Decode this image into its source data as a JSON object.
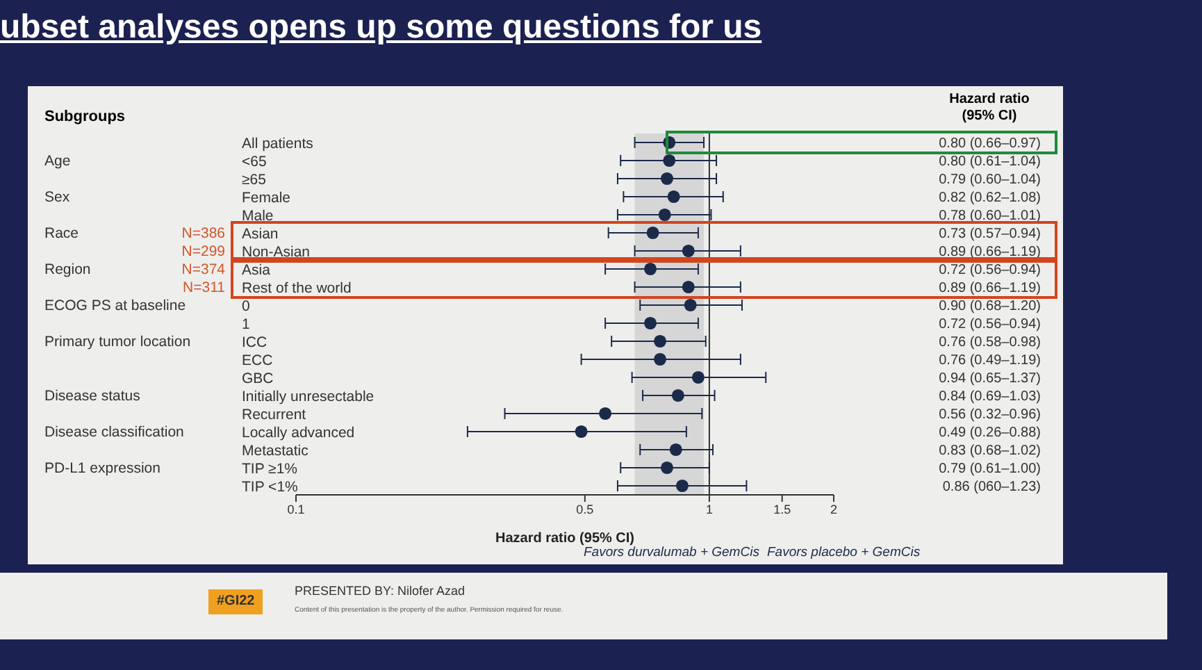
{
  "chart_data": {
    "type": "scatter",
    "title": "ubset analyses opens up some questions for us",
    "xlabel": "Hazard ratio (95% CI)",
    "categories": [
      "All patients",
      "<65",
      "≥65",
      "Female",
      "Male",
      "Asian",
      "Non-Asian",
      "Asia",
      "Rest of the world",
      "0",
      "1",
      "ICC",
      "ECC",
      "GBC",
      "Initially unresectable",
      "Recurrent",
      "Locally advanced",
      "Metastatic",
      "TIP ≥1%",
      "TIP <1%"
    ],
    "series": [
      {
        "color": "#1c2a4a",
        "values": [
          0.8,
          0.8,
          0.79,
          0.82,
          0.78,
          0.73,
          0.89,
          0.72,
          0.89,
          0.9,
          0.72,
          0.76,
          0.76,
          0.94,
          0.84,
          0.56,
          0.49,
          0.83,
          0.79,
          0.86
        ],
        "errors": [
          [
            0.66,
            0.97
          ],
          [
            0.61,
            1.04
          ],
          [
            0.6,
            1.04
          ],
          [
            0.62,
            1.08
          ],
          [
            0.6,
            1.01
          ],
          [
            0.57,
            0.94
          ],
          [
            0.66,
            1.19
          ],
          [
            0.56,
            0.94
          ],
          [
            0.66,
            1.19
          ],
          [
            0.68,
            1.2
          ],
          [
            0.56,
            0.94
          ],
          [
            0.58,
            0.98
          ],
          [
            0.49,
            1.19
          ],
          [
            0.65,
            1.37
          ],
          [
            0.69,
            1.03
          ],
          [
            0.32,
            0.96
          ],
          [
            0.26,
            0.88
          ],
          [
            0.68,
            1.02
          ],
          [
            0.61,
            1.0
          ],
          [
            0.6,
            1.23
          ]
        ],
        "value_labels": [
          "0.80 (0.66–0.97)",
          "0.80 (0.61–1.04)",
          "0.79 (0.60–1.04)",
          "0.82 (0.62–1.08)",
          "0.78 (0.60–1.01)",
          "0.73 (0.57–0.94)",
          "0.89 (0.66–1.19)",
          "0.72 (0.56–0.94)",
          "0.89 (0.66–1.19)",
          "0.90 (0.68–1.20)",
          "0.72 (0.56–0.94)",
          "0.76 (0.58–0.98)",
          "0.76 (0.49–1.19)",
          "0.94 (0.65–1.37)",
          "0.84 (0.69–1.03)",
          "0.56 (0.32–0.96)",
          "0.49 (0.26–0.88)",
          "0.83 (0.68–1.02)",
          "0.79 (0.61–1.00)",
          "0.86 (060–1.23)"
        ]
      }
    ],
    "orientation": "horizontal",
    "xlim": [
      0.1,
      2
    ],
    "xticks": [
      0.1,
      0.5,
      1,
      1.5,
      2
    ],
    "log": "x",
    "marker": "circle",
    "grid": false,
    "legend": false,
    "ref_lines": [
      {
        "axis": "x",
        "value": 1,
        "color": "#333333"
      }
    ],
    "bands": [
      {
        "axis": "x",
        "from": 0.66,
        "to": 0.97,
        "color": "#d6d6d6"
      }
    ],
    "annotations": [
      "Subgroups",
      "Hazard ratio (95% CI)",
      "Favors durvalumab + GemCis",
      "Favors placebo + GemCis",
      "#GI22",
      "PRESENTED BY: Nilofer Azad",
      "Content of this presentation is the property of the author. Permission required for reuse.",
      "Age",
      "Sex",
      "Race",
      "N=386",
      "N=299",
      "Region",
      "N=374",
      "N=311",
      "ECOG PS at baseline",
      "Primary tumor location",
      "Disease status",
      "Disease classification",
      "PD-L1 expression"
    ]
  }
}
